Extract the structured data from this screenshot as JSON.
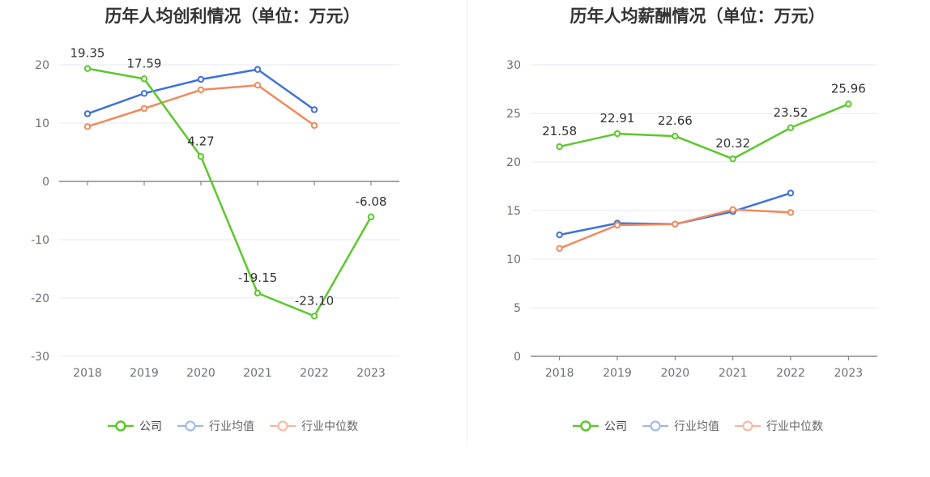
{
  "charts": [
    {
      "id": "left",
      "chart_data": {
        "type": "line",
        "title": "历年人均创利情况（单位：万元）",
        "categories": [
          "2018",
          "2019",
          "2020",
          "2021",
          "2022",
          "2023"
        ],
        "ylim": [
          -30,
          20
        ],
        "yticks": [
          20,
          10,
          0,
          -10,
          -20,
          -30
        ],
        "ytick_labels": [
          "20",
          "10",
          "0",
          "-10",
          "-20",
          "-30"
        ],
        "grid": true,
        "legend_position": "bottom",
        "series": [
          {
            "name": "公司",
            "color": "#5cc72e",
            "values": [
              19.35,
              17.59,
              4.27,
              -19.15,
              -23.1,
              -6.08
            ],
            "labels": [
              "19.35",
              "17.59",
              "4.27",
              "-19.15",
              "-23.10",
              "-6.08"
            ]
          },
          {
            "name": "行业均值",
            "color": "#3f72d9",
            "values": [
              11.6,
              15.1,
              17.5,
              19.2,
              12.3,
              null
            ]
          },
          {
            "name": "行业中位数",
            "color": "#f08a5d",
            "values": [
              9.4,
              12.5,
              15.7,
              16.5,
              9.6,
              null
            ]
          }
        ]
      }
    },
    {
      "id": "right",
      "chart_data": {
        "type": "line",
        "title": "历年人均薪酬情况（单位：万元）",
        "categories": [
          "2018",
          "2019",
          "2020",
          "2021",
          "2022",
          "2023"
        ],
        "ylim": [
          0,
          30
        ],
        "yticks": [
          30,
          25,
          20,
          15,
          10,
          5,
          0
        ],
        "ytick_labels": [
          "30",
          "25",
          "20",
          "15",
          "10",
          "5",
          "0"
        ],
        "grid": true,
        "legend_position": "bottom",
        "series": [
          {
            "name": "公司",
            "color": "#5cc72e",
            "values": [
              21.58,
              22.91,
              22.66,
              20.32,
              23.52,
              25.96
            ],
            "labels": [
              "21.58",
              "22.91",
              "22.66",
              "20.32",
              "23.52",
              "25.96"
            ]
          },
          {
            "name": "行业均值",
            "color": "#3f72d9",
            "values": [
              12.5,
              13.7,
              13.6,
              14.9,
              16.8,
              null
            ]
          },
          {
            "name": "行业中位数",
            "color": "#f08a5d",
            "values": [
              11.1,
              13.5,
              13.6,
              15.1,
              14.8,
              null
            ]
          }
        ]
      }
    }
  ],
  "legend": {
    "items": [
      {
        "label": "公司",
        "color": "#5cc72e"
      },
      {
        "label": "行业均值",
        "color": "#9bb7ef"
      },
      {
        "label": "行业中位数",
        "color": "#f6b79c"
      }
    ]
  }
}
